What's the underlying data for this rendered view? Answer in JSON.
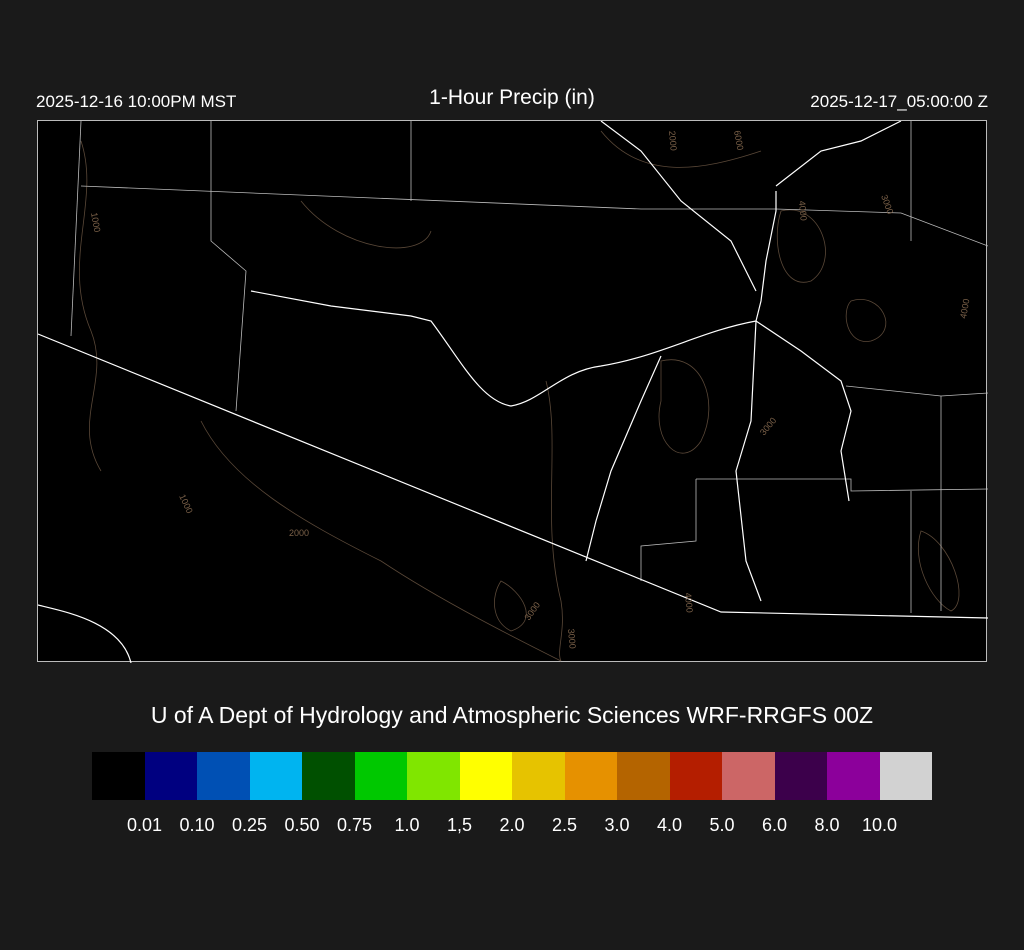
{
  "header": {
    "valid_local": "2025-12-16 10:00PM MST",
    "title": "1-Hour Precip (in)",
    "valid_utc": "2025-12-17_05:00:00 Z"
  },
  "map": {
    "background": "#000000",
    "boundary_color": "#ffffff",
    "contour_color": "#6b5440",
    "contour_labels": [
      "1000",
      "2000",
      "4000",
      "6000",
      "3000",
      "4000",
      "3000",
      "1000",
      "2000",
      "3000",
      "3000",
      "4000"
    ]
  },
  "credit": "U of A Dept of Hydrology and Atmospheric Sciences WRF-RRGFS 00Z",
  "colorbar": {
    "colors": [
      "#000000",
      "#000080",
      "#0050b4",
      "#00b4f0",
      "#005000",
      "#00c800",
      "#80e600",
      "#ffff00",
      "#e6c300",
      "#e69100",
      "#b46400",
      "#b41e00",
      "#cc6666",
      "#3c004b",
      "#8c009b",
      "#d2d2d2"
    ],
    "labels": [
      "0.01",
      "0.10",
      "0.25",
      "0.50",
      "0.75",
      "1.0",
      "1,5",
      "2.0",
      "2.5",
      "3.0",
      "4.0",
      "5.0",
      "6.0",
      "8.0",
      "10.0"
    ]
  }
}
